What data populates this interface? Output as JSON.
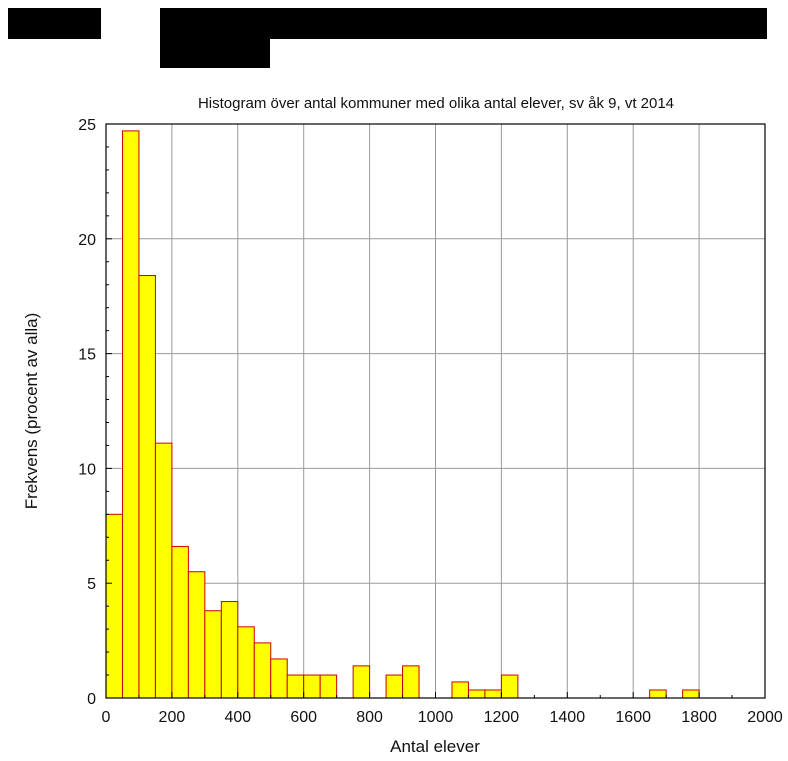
{
  "redactions": [
    {
      "name": "redaction-block-1"
    },
    {
      "name": "redaction-block-2"
    },
    {
      "name": "redaction-block-3"
    }
  ],
  "chart_data": {
    "type": "bar",
    "title": "Histogram över antal kommuner med olika antal elever, sv åk 9, vt 2014",
    "xlabel": "Antal elever",
    "ylabel": "Frekvens (procent av alla)",
    "xlim": [
      0,
      2000
    ],
    "ylim": [
      0,
      25
    ],
    "xticks": [
      0,
      200,
      400,
      600,
      800,
      1000,
      1200,
      1400,
      1600,
      1800,
      2000
    ],
    "yticks": [
      0,
      5,
      10,
      15,
      20,
      25
    ],
    "bin_width": 50,
    "grid": true,
    "legend": "none",
    "bar_fill": "#ffff00",
    "bar_stroke": "#cc0000",
    "bins": [
      {
        "x0": 0,
        "x1": 50,
        "value": 8.0
      },
      {
        "x0": 50,
        "x1": 100,
        "value": 24.7
      },
      {
        "x0": 100,
        "x1": 150,
        "value": 18.4
      },
      {
        "x0": 150,
        "x1": 200,
        "value": 11.1
      },
      {
        "x0": 200,
        "x1": 250,
        "value": 6.6
      },
      {
        "x0": 250,
        "x1": 300,
        "value": 5.5
      },
      {
        "x0": 300,
        "x1": 350,
        "value": 3.8
      },
      {
        "x0": 350,
        "x1": 400,
        "value": 4.2
      },
      {
        "x0": 400,
        "x1": 450,
        "value": 3.1
      },
      {
        "x0": 450,
        "x1": 500,
        "value": 2.4
      },
      {
        "x0": 500,
        "x1": 550,
        "value": 1.7
      },
      {
        "x0": 550,
        "x1": 600,
        "value": 1.0
      },
      {
        "x0": 600,
        "x1": 650,
        "value": 1.0
      },
      {
        "x0": 650,
        "x1": 700,
        "value": 1.0
      },
      {
        "x0": 750,
        "x1": 800,
        "value": 1.4
      },
      {
        "x0": 850,
        "x1": 900,
        "value": 1.0
      },
      {
        "x0": 900,
        "x1": 950,
        "value": 1.4
      },
      {
        "x0": 1050,
        "x1": 1100,
        "value": 0.7
      },
      {
        "x0": 1100,
        "x1": 1150,
        "value": 0.35
      },
      {
        "x0": 1150,
        "x1": 1200,
        "value": 0.35
      },
      {
        "x0": 1200,
        "x1": 1250,
        "value": 1.0
      },
      {
        "x0": 1650,
        "x1": 1700,
        "value": 0.35
      },
      {
        "x0": 1750,
        "x1": 1800,
        "value": 0.35
      }
    ]
  }
}
